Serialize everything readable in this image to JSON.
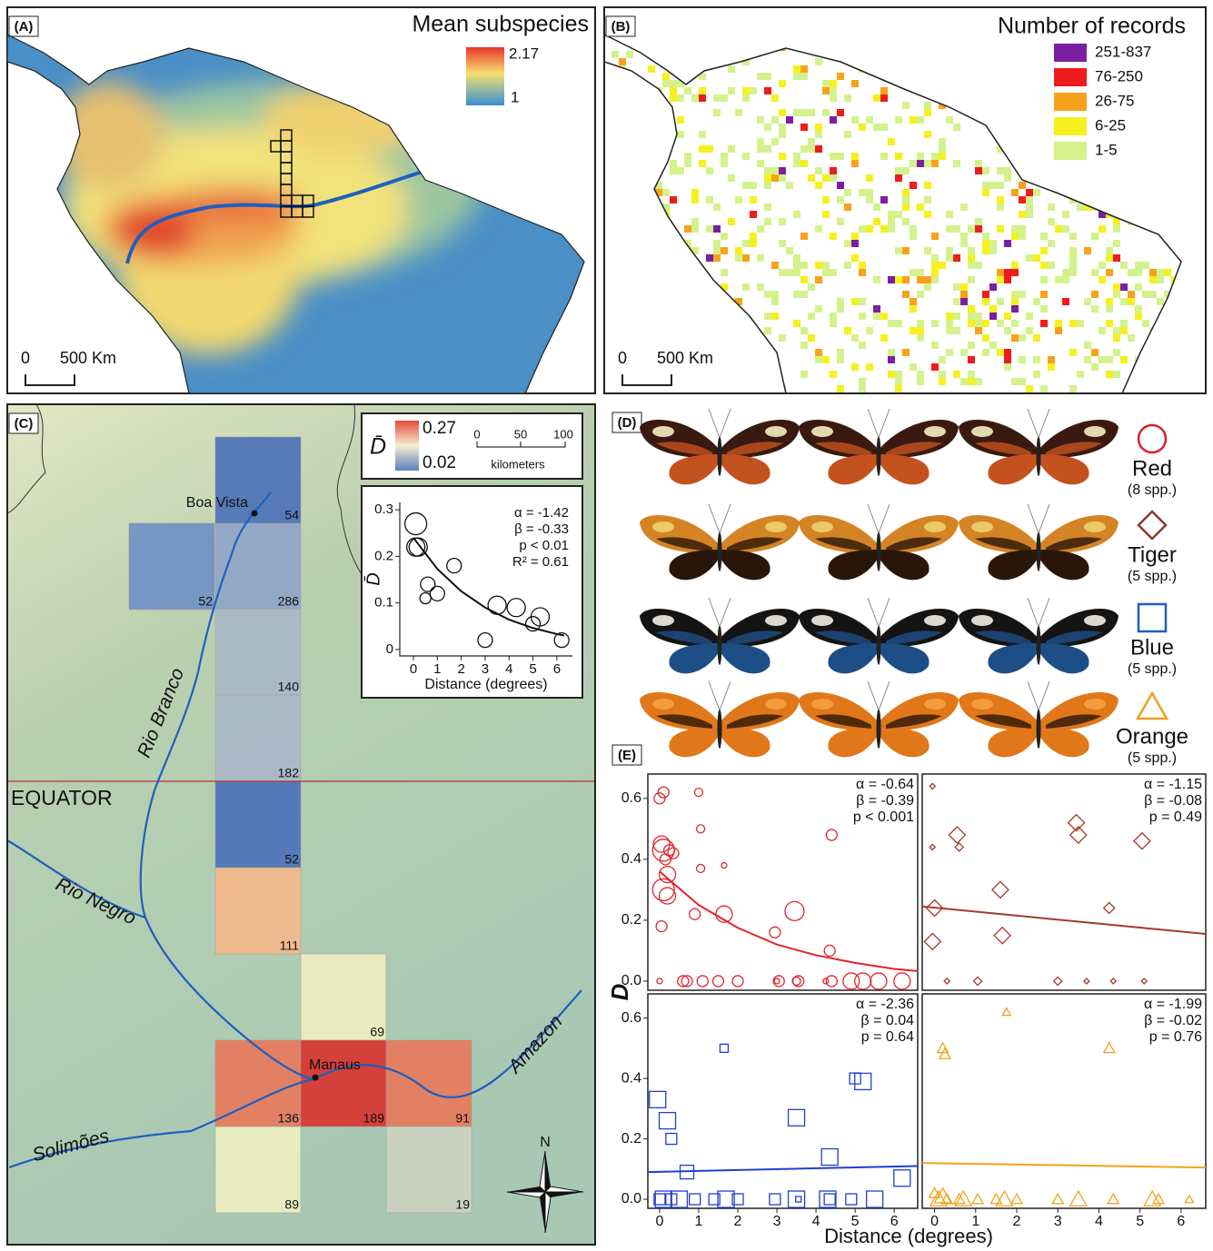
{
  "panel_a": {
    "label": "(A)",
    "title": "Mean subspecies",
    "legend_max": 2.17,
    "legend_min": 1,
    "scale_start": "0",
    "scale_end": "500 Km"
  },
  "panel_b": {
    "label": "(B)",
    "title": "Number of records",
    "scale_start": "0",
    "scale_end": "500 Km",
    "legend": [
      {
        "label": "251-837",
        "color": "#7b1fa2"
      },
      {
        "label": "76-250",
        "color": "#ee1c1c"
      },
      {
        "label": "26-75",
        "color": "#f7a21b"
      },
      {
        "label": "6-25",
        "color": "#f6f01e"
      },
      {
        "label": "1-5",
        "color": "#d4f28c"
      }
    ]
  },
  "panel_c": {
    "label": "(C)",
    "legend_symbol": "D̄",
    "legend_max": 0.27,
    "legend_min": 0.02,
    "scale_ticks": [
      "0",
      "50",
      "100"
    ],
    "scale_unit": "kilometers",
    "places": [
      "Boa Vista",
      "Manaus"
    ],
    "equator": "EQUATOR",
    "rivers": [
      "Rio Branco",
      "Rio Negro",
      "Amazon",
      "Solimões"
    ],
    "north": "N",
    "cells": [
      {
        "label": 54,
        "color": "#4a70b8"
      },
      {
        "label": 52,
        "color": "#6f8fc4"
      },
      {
        "label": 286,
        "color": "#8ea4c8"
      },
      {
        "label": 140,
        "color": "#a9b7c8"
      },
      {
        "label": 182,
        "color": "#a9b7c8"
      },
      {
        "label": 52,
        "color": "#4a70b8"
      },
      {
        "label": 111,
        "color": "#f6b888"
      },
      {
        "label": 69,
        "color": "#eeeec0"
      },
      {
        "label": 136,
        "color": "#e8785a"
      },
      {
        "label": 189,
        "color": "#d8312c"
      },
      {
        "label": 91,
        "color": "#e8785a"
      },
      {
        "label": 89,
        "color": "#eeeec0"
      },
      {
        "label": 19,
        "color": "#cdd3c0"
      }
    ]
  },
  "panel_d": {
    "label": "(D)",
    "groups": [
      {
        "name": "Red",
        "count": "(8 spp.)",
        "color": "#d92027"
      },
      {
        "name": "Tiger",
        "count": "(5 spp.)",
        "color": "#8b3a2a"
      },
      {
        "name": "Blue",
        "count": "(5 spp.)",
        "color": "#1f5fbf"
      },
      {
        "name": "Orange",
        "count": "(5 spp.)",
        "color": "#f0a020"
      }
    ]
  },
  "panel_e": {
    "label": "(E)",
    "y_label": "D",
    "x_label": "Distance (degrees)"
  },
  "chart_data": [
    {
      "type": "scatter",
      "y_label": "D̄",
      "x_label": "Distance (degrees)",
      "xlim": [
        -0.57,
        6.65
      ],
      "ylim": [
        -0.014,
        0.316
      ],
      "xticks": [
        0,
        1,
        2,
        3,
        4,
        5,
        6
      ],
      "yticks": [
        0,
        0.1,
        0.2,
        0.3
      ],
      "annotations": [
        "α = -1.42",
        "β = -0.33",
        "p < 0.01",
        "R² = 0.61"
      ],
      "series": [
        {
          "marker": "circle",
          "color": "#111111",
          "x": [
            0.1,
            0.1,
            0.2,
            0.5,
            0.6,
            1.0,
            1.7,
            3.0,
            3.5,
            4.3,
            5.0,
            5.3,
            6.2
          ],
          "values": [
            0.27,
            0.22,
            0.22,
            0.11,
            0.14,
            0.12,
            0.18,
            0.02,
            0.095,
            0.09,
            0.055,
            0.07,
            0.02
          ],
          "sizes": [
            3,
            2.5,
            2.5,
            1.5,
            2,
            2,
            2,
            2,
            2.5,
            2.5,
            2,
            2.5,
            2
          ]
        }
      ],
      "fit": {
        "x": [
          0,
          1,
          2,
          3,
          4,
          5,
          6,
          6.3
        ],
        "values": [
          0.24,
          0.173,
          0.125,
          0.09,
          0.064,
          0.046,
          0.033,
          0.03
        ]
      }
    },
    {
      "type": "scatter",
      "xlim": [
        -0.3,
        6.6
      ],
      "ylim": [
        -0.03,
        0.68
      ],
      "yticks": [
        {
          "value": 0,
          "label": "0.0"
        },
        0.2,
        0.4,
        0.6
      ],
      "annotations": [
        "α = -0.64",
        "β = -0.39",
        "p < 0.001"
      ],
      "series": [
        {
          "marker": "circle",
          "color": "#e0252b",
          "x": [
            0,
            0.05,
            0.1,
            0.15,
            0.2,
            0.1,
            0.2,
            0.05,
            0.1,
            0.25,
            0.35,
            0.9,
            1.05,
            1.0,
            1.05,
            1.65,
            1.65,
            2.95,
            3.45,
            4.35,
            4.4,
            0,
            0.6,
            0.7,
            1.1,
            1.5,
            2.0,
            3.0,
            3.05,
            3.5,
            3.55,
            4.25,
            4.4,
            4.9,
            5.2,
            5.6,
            6.2
          ],
          "values": [
            0.6,
            0.45,
            0.43,
            0.4,
            0.35,
            0.3,
            0.28,
            0.18,
            0.62,
            0.43,
            0.42,
            0.22,
            0.5,
            0.62,
            0.37,
            0.38,
            0.22,
            0.16,
            0.23,
            0.1,
            0.48,
            0,
            0,
            0,
            0,
            0,
            0,
            0,
            0,
            0,
            0,
            0,
            0,
            0,
            0,
            0,
            0
          ],
          "sizes": [
            2,
            3,
            4,
            2,
            3,
            4,
            3,
            2,
            2,
            2,
            2,
            2,
            1.5,
            1.5,
            1.5,
            1,
            3,
            2,
            3.5,
            2,
            2,
            1,
            2,
            2,
            2,
            2,
            2,
            1,
            2,
            1.5,
            2,
            1,
            2,
            3,
            3,
            3,
            3
          ]
        }
      ],
      "fit": {
        "x": [
          0,
          1,
          2,
          3,
          4,
          5,
          6,
          6.6
        ],
        "values": [
          0.36,
          0.25,
          0.175,
          0.12,
          0.085,
          0.06,
          0.04,
          0.033
        ]
      }
    },
    {
      "type": "scatter",
      "xlim": [
        -0.3,
        6.6
      ],
      "ylim": [
        -0.03,
        0.68
      ],
      "annotations": [
        "α = -1.15",
        "β = -0.08",
        "p = 0.49"
      ],
      "series": [
        {
          "marker": "diamond",
          "color": "#a33a2c",
          "x": [
            -0.05,
            -0.05,
            0,
            -0.05,
            0.3,
            0.55,
            0.6,
            1.05,
            1.6,
            1.65,
            3.0,
            3.45,
            3.5,
            3.7,
            4.25,
            4.35,
            5.05,
            5.1
          ],
          "values": [
            0.64,
            0.44,
            0.24,
            0.13,
            0,
            0.48,
            0.44,
            0,
            0.3,
            0.15,
            0,
            0.52,
            0.48,
            0,
            0.24,
            0,
            0.46,
            0
          ],
          "sizes": [
            1,
            1,
            3,
            3,
            1,
            3,
            1.5,
            1.5,
            3,
            3,
            1.5,
            3,
            3,
            1,
            2,
            1,
            3,
            1
          ]
        }
      ],
      "fit": {
        "x": [
          -0.3,
          6.6
        ],
        "values": [
          0.245,
          0.155
        ]
      }
    },
    {
      "type": "scatter",
      "xlim": [
        -0.3,
        6.6
      ],
      "ylim": [
        -0.03,
        0.68
      ],
      "xticks": [
        0,
        1,
        2,
        3,
        4,
        5,
        6
      ],
      "yticks": [
        {
          "value": 0,
          "label": "0.0"
        },
        0.2,
        0.4,
        0.6
      ],
      "annotations": [
        "α = -2.36",
        "β = 0.04",
        "p = 0.64"
      ],
      "series": [
        {
          "marker": "square",
          "color": "#1f3fd0",
          "x": [
            -0.05,
            0.2,
            0.3,
            0.7,
            1.65,
            3.5,
            4.35,
            5.0,
            5.2,
            6.2,
            0,
            0.1,
            0.3,
            0.5,
            0.9,
            1.4,
            1.7,
            2.0,
            2.95,
            3.5,
            3.55,
            4.3,
            4.35,
            4.9,
            5.5
          ],
          "values": [
            0.33,
            0.26,
            0.2,
            0.09,
            0.5,
            0.27,
            0.14,
            0.4,
            0.39,
            0.07,
            0,
            0,
            0,
            0,
            0,
            0,
            0,
            0,
            0,
            0,
            0,
            0,
            0,
            0,
            0
          ],
          "sizes": [
            3,
            3,
            2,
            2.5,
            1.5,
            3,
            3,
            2,
            3,
            3,
            2,
            3,
            2,
            3,
            2,
            2,
            3,
            2,
            2,
            3,
            1,
            3,
            2,
            2,
            3
          ]
        }
      ],
      "fit": {
        "x": [
          -0.3,
          6.6
        ],
        "values": [
          0.09,
          0.11
        ]
      }
    },
    {
      "type": "scatter",
      "xlim": [
        -0.3,
        6.6
      ],
      "ylim": [
        -0.03,
        0.68
      ],
      "xticks": [
        0,
        1,
        2,
        3,
        4,
        5,
        6
      ],
      "annotations": [
        "α = -1.99",
        "β = -0.02",
        "p = 0.76"
      ],
      "series": [
        {
          "marker": "triangle",
          "color": "#f2a31c",
          "x": [
            0.2,
            0.25,
            1.75,
            4.25,
            0,
            0.1,
            0.2,
            0.3,
            0.6,
            0.7,
            1.05,
            1.5,
            1.7,
            2.0,
            3.0,
            3.5,
            4.35,
            5.3,
            5.45,
            6.2
          ],
          "values": [
            0.5,
            0.48,
            0.62,
            0.5,
            0.02,
            0,
            0.01,
            0,
            0,
            0,
            0,
            0,
            0,
            0,
            0,
            0,
            0,
            0,
            0,
            0
          ],
          "sizes": [
            2,
            2,
            1.5,
            2,
            2,
            3,
            3,
            2,
            2,
            3,
            2,
            2,
            3,
            2,
            2,
            3,
            2,
            3,
            2,
            1.5
          ]
        }
      ],
      "fit": {
        "x": [
          -0.3,
          6.6
        ],
        "values": [
          0.12,
          0.105
        ]
      }
    }
  ]
}
